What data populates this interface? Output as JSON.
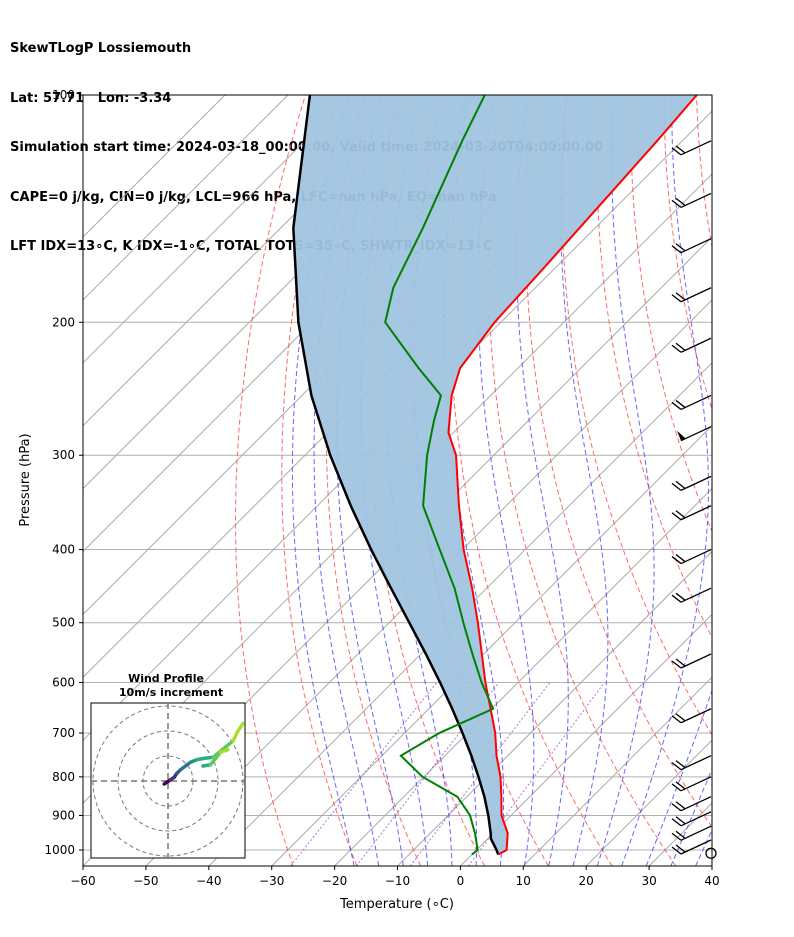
{
  "header": {
    "line1": "SkewTLogP Lossiemouth",
    "line2": "Lat: 57.71   Lon: -3.34",
    "line3": "Simulation start time: 2024-03-18_00:00:00, Valid time: 2024-03-20T04:00:00.00",
    "line4": "CAPE=0 j/kg, CIN=0 j/kg, LCL=966 hPa, LFC=nan hPa, EQ=nan hPa",
    "line5": "LFT IDX=13∘C, K IDX=-1∘C, TOTAL TOTS=38∘C, SHWTR_IDX=13∘C"
  },
  "chart_data": {
    "type": "line",
    "subtype": "skew-t log-p",
    "xlabel": "Temperature (∘C)",
    "ylabel": "Pressure (hPa)",
    "xlim": [
      -60,
      40
    ],
    "ylim": [
      1050,
      100
    ],
    "y_scale": "log",
    "x_ticks": [
      -60,
      -50,
      -40,
      -30,
      -20,
      -10,
      0,
      10,
      20,
      30,
      40
    ],
    "x_tick_labels": [
      "−60",
      "−50",
      "−40",
      "−30",
      "−20",
      "−10",
      "0",
      "10",
      "20",
      "30",
      "40"
    ],
    "y_ticks": [
      1000,
      900,
      800,
      700,
      600,
      500,
      400,
      300,
      200,
      100
    ],
    "y_tick_labels": [
      "1000",
      "900",
      "800",
      "700",
      "600",
      "500",
      "400",
      "300",
      "200",
      "100"
    ],
    "grid": true,
    "colors": {
      "temperature": "#ff0000",
      "dewpoint": "#008000",
      "parcel": "#000000",
      "cape_fill": "#a0c4df",
      "dry_adiabat": "#ff5050",
      "moist_adiabat": "#4040ff",
      "mixing_ratio": "#a050d0",
      "isotherm": "#aaaaaa"
    },
    "series": [
      {
        "role": "temperature",
        "p": [
          1014,
          1000,
          950,
          900,
          850,
          800,
          750,
          700,
          650,
          600,
          550,
          500,
          450,
          400,
          350,
          300,
          280,
          250,
          230,
          200,
          170,
          150,
          130,
          115,
          100
        ],
        "t": [
          4.2,
          4.8,
          2.3,
          -1.5,
          -4.5,
          -7.8,
          -11.8,
          -15.6,
          -20.2,
          -25.2,
          -30.3,
          -35.9,
          -42.3,
          -49.8,
          -57.5,
          -66.0,
          -70.8,
          -76.2,
          -79.2,
          -81.0,
          -81.8,
          -82.5,
          -83.3,
          -84.0,
          -85.0
        ]
      },
      {
        "role": "dewpoint",
        "p": [
          1014,
          1000,
          950,
          900,
          850,
          800,
          750,
          700,
          650,
          600,
          550,
          500,
          450,
          400,
          350,
          300,
          270,
          250,
          230,
          200,
          180,
          150,
          130,
          115,
          100
        ],
        "t": [
          0.0,
          0.2,
          -2.9,
          -6.5,
          -11.5,
          -20.2,
          -27.0,
          -24.5,
          -19.8,
          -25.8,
          -31.8,
          -38.2,
          -45.1,
          -53.6,
          -63.2,
          -70.6,
          -75.0,
          -77.9,
          -85.8,
          -98.4,
          -102.6,
          -107.4,
          -111.5,
          -115.0,
          -118.7
        ]
      },
      {
        "role": "parcel",
        "p": [
          1014,
          1000,
          966,
          950,
          900,
          850,
          800,
          750,
          700,
          650,
          600,
          550,
          500,
          450,
          400,
          350,
          300,
          250,
          200,
          150,
          100
        ],
        "t": [
          4.2,
          3.2,
          0.5,
          -0.4,
          -3.6,
          -7.2,
          -11.3,
          -15.8,
          -20.8,
          -26.3,
          -32.4,
          -39.2,
          -46.8,
          -55.2,
          -64.5,
          -74.7,
          -86.0,
          -98.5,
          -112.2,
          -128.0,
          -146.5
        ]
      }
    ],
    "wind_barbs_side": "right",
    "wind_barbs": [
      {
        "p": 1010,
        "kind": "calm"
      },
      {
        "p": 970,
        "kind": "barb"
      },
      {
        "p": 930,
        "kind": "barb"
      },
      {
        "p": 890,
        "kind": "barb"
      },
      {
        "p": 850,
        "kind": "barb"
      },
      {
        "p": 800,
        "kind": "barb"
      },
      {
        "p": 750,
        "kind": "barb"
      },
      {
        "p": 650,
        "kind": "barb"
      },
      {
        "p": 550,
        "kind": "barb"
      },
      {
        "p": 450,
        "kind": "barb"
      },
      {
        "p": 400,
        "kind": "barb"
      },
      {
        "p": 350,
        "kind": "barb"
      },
      {
        "p": 320,
        "kind": "barb"
      },
      {
        "p": 275,
        "kind": "pennant"
      },
      {
        "p": 250,
        "kind": "barb"
      },
      {
        "p": 210,
        "kind": "barb"
      },
      {
        "p": 180,
        "kind": "barb"
      },
      {
        "p": 155,
        "kind": "barb"
      },
      {
        "p": 135,
        "kind": "barb"
      },
      {
        "p": 115,
        "kind": "barb"
      }
    ],
    "hodograph": {
      "title": "Wind Profile",
      "subtitle": "10m/s increment",
      "ring_step_ms": 10,
      "rings": 3,
      "points": [
        [
          -1.5,
          -1.2
        ],
        [
          -0.5,
          -0.5
        ],
        [
          1.0,
          0.5
        ],
        [
          2.5,
          1.5
        ],
        [
          3.5,
          3.0
        ],
        [
          5.0,
          4.5
        ],
        [
          7.0,
          6.0
        ],
        [
          9.0,
          7.5
        ],
        [
          11.5,
          8.5
        ],
        [
          14.0,
          9.0
        ],
        [
          18.0,
          9.5
        ],
        [
          26.0,
          16.0
        ],
        [
          28.0,
          20.0
        ],
        [
          30.0,
          23.0
        ]
      ],
      "points2": [
        [
          14.0,
          6.0
        ],
        [
          17.0,
          6.5
        ],
        [
          19.0,
          9.0
        ],
        [
          21.0,
          11.5
        ],
        [
          24.0,
          12.5
        ]
      ]
    }
  }
}
